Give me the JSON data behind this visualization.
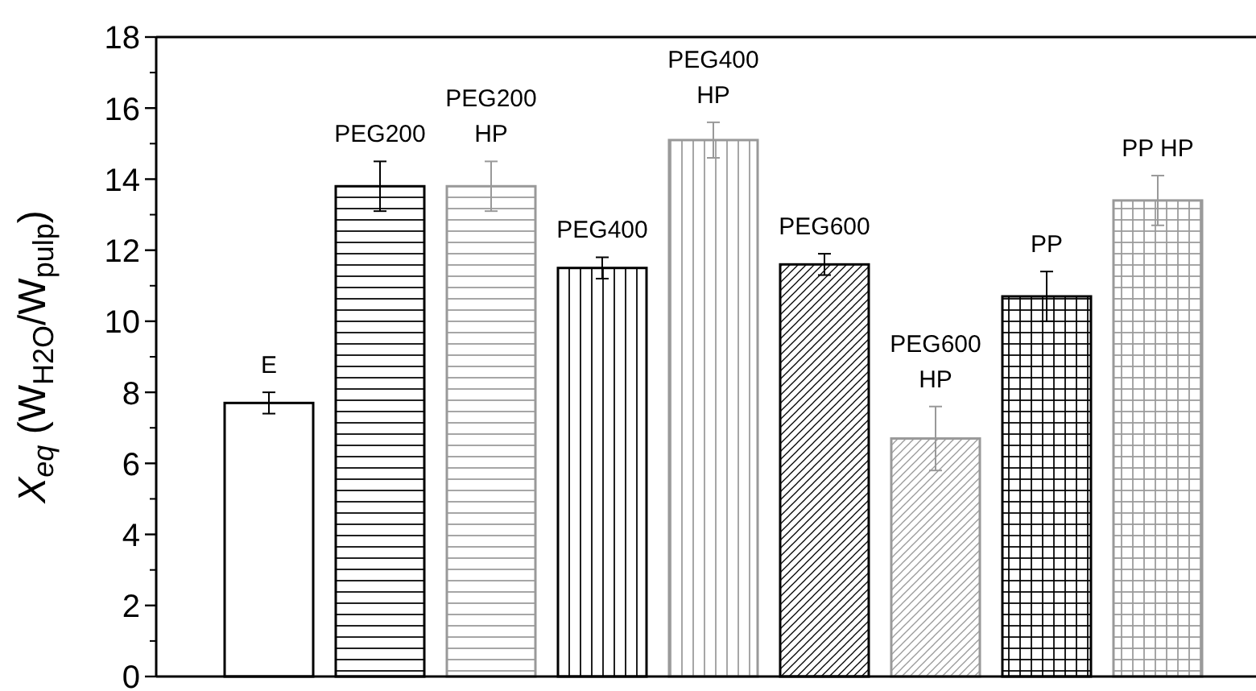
{
  "chart_data": {
    "type": "bar",
    "ylabel": "X$_{eq}$ (W$_{H2O}$/W$_{pulp}$)",
    "categories": [
      "E",
      "PEG200",
      "PEG200 HP",
      "PEG400",
      "PEG400 HP",
      "PEG600",
      "PEG600 HP",
      "PP",
      "PP HP"
    ],
    "values": [
      7.7,
      13.8,
      13.8,
      11.5,
      15.1,
      11.6,
      6.7,
      10.7,
      13.4
    ],
    "errors": [
      0.3,
      0.7,
      0.7,
      0.3,
      0.5,
      0.3,
      0.9,
      0.7,
      0.7
    ],
    "colors": [
      "#000000",
      "#000000",
      "#999999",
      "#000000",
      "#999999",
      "#000000",
      "#999999",
      "#000000",
      "#999999"
    ],
    "ylim": [
      0,
      18
    ],
    "yticks": [
      0,
      2,
      4,
      6,
      8,
      10,
      12,
      14,
      16,
      18
    ],
    "grid": false
  }
}
